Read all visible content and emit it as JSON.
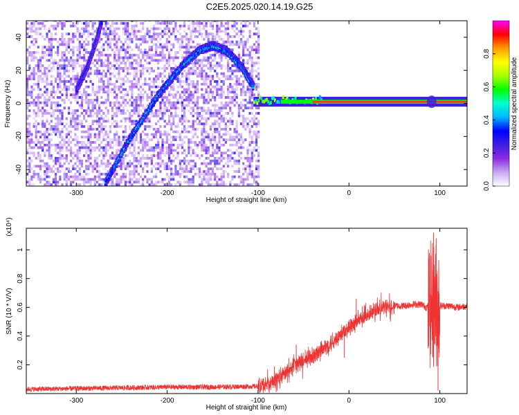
{
  "title": "C2E5.2025.020.14.19.G25",
  "chart_data": [
    {
      "type": "heatmap",
      "xlabel": "Height of straight line (km)",
      "ylabel": "Frequency (Hz)",
      "xlim": [
        -355,
        130
      ],
      "ylim": [
        -50,
        50
      ],
      "xticks": [
        -300,
        -200,
        -100,
        0,
        100
      ],
      "yticks": [
        -40,
        -20,
        0,
        20,
        40
      ],
      "colorbar": {
        "label": "Normalized spectral amplitude",
        "range": [
          0,
          1
        ],
        "ticks": [
          0.0,
          0.2,
          0.4,
          0.6,
          0.8
        ],
        "colormap": [
          "#ffffff",
          "#c9a8f2",
          "#8a2be2",
          "#3d1fe0",
          "#0000ff",
          "#00b7ff",
          "#00ffd0",
          "#00ff00",
          "#a8ff00",
          "#ffff00",
          "#ff9d00",
          "#ff0000",
          "#ff00ff"
        ]
      },
      "features": {
        "noise_region_x": [
          -355,
          -100
        ],
        "noise_level": 0.2,
        "curve_1": {
          "x": [
            -268,
            -240,
            -210,
            -185,
            -165,
            -150,
            -135,
            -118,
            -105
          ],
          "y": [
            -48,
            -20,
            5,
            22,
            32,
            35,
            32,
            22,
            10
          ],
          "amplitude": 0.4
        },
        "curve_2": {
          "x": [
            -300,
            -288,
            -278,
            -272
          ],
          "y": [
            8,
            22,
            38,
            50
          ],
          "amplitude": 0.3
        },
        "band": {
          "x_start": -105,
          "x_end": 130,
          "y": 1,
          "amplitude": 1.0
        }
      }
    },
    {
      "type": "line",
      "xlabel": "Height of straight line (km)",
      "ylabel": "SNR (10 * V/V)",
      "multiplier": "(x10⁴)",
      "xlim": [
        -355,
        130
      ],
      "ylim": [
        0,
        1.15
      ],
      "xticks": [
        -300,
        -200,
        -100,
        0,
        100
      ],
      "yticks": [
        0.2,
        0.4,
        0.6,
        0.8,
        1
      ],
      "series": [
        {
          "color": "#ee3333",
          "envelope_x": [
            -355,
            -300,
            -250,
            -200,
            -150,
            -100,
            -90,
            -80,
            -70,
            -60,
            -50,
            -40,
            -30,
            -20,
            -10,
            0,
            10,
            20,
            30,
            40,
            50,
            60,
            70,
            80,
            85,
            90,
            95,
            100,
            110,
            120,
            130
          ],
          "envelope_y": [
            0.03,
            0.035,
            0.04,
            0.045,
            0.045,
            0.05,
            0.06,
            0.1,
            0.14,
            0.2,
            0.22,
            0.26,
            0.3,
            0.35,
            0.4,
            0.45,
            0.5,
            0.55,
            0.58,
            0.6,
            0.61,
            0.61,
            0.62,
            0.62,
            0.6,
            0.62,
            0.62,
            0.61,
            0.61,
            0.6,
            0.61
          ],
          "spikes": [
            [
              -58,
              0.34
            ],
            [
              -45,
              0.3
            ],
            [
              -35,
              0.33
            ],
            [
              -20,
              0.4
            ],
            [
              -5,
              0.25
            ],
            [
              8,
              0.66
            ],
            [
              12,
              0.55
            ],
            [
              90,
              0.95
            ],
            [
              93,
              1.12
            ],
            [
              96,
              1.08
            ],
            [
              98,
              0.02
            ]
          ]
        }
      ]
    }
  ]
}
